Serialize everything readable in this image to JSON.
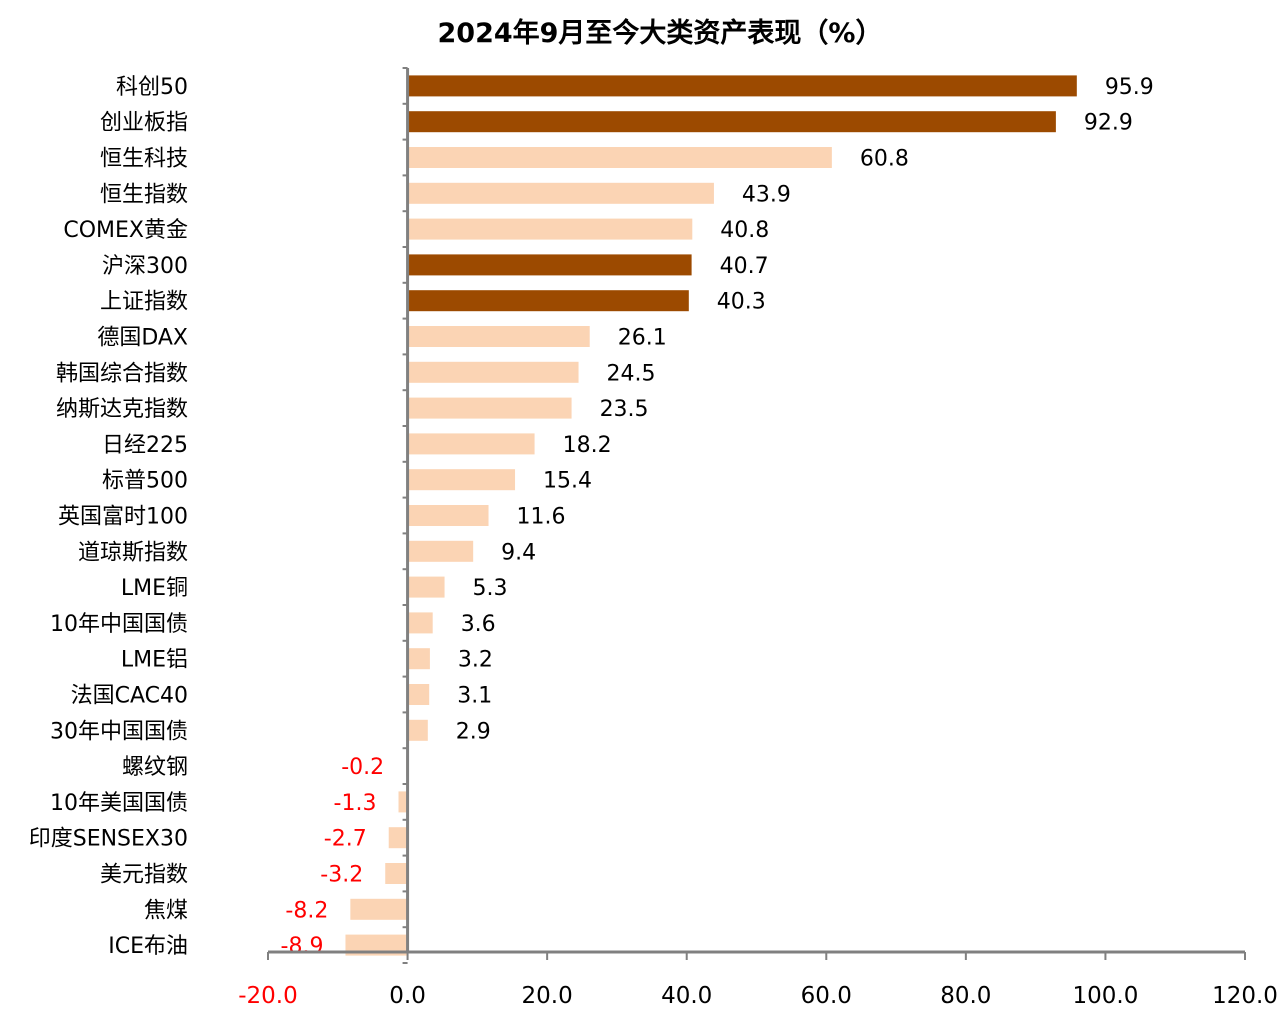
{
  "chart_data": {
    "type": "bar",
    "orientation": "horizontal",
    "title": "2024年9月至今大类资产表现（%）",
    "categories": [
      "科创50",
      "创业板指",
      "恒生科技",
      "恒生指数",
      "COMEX黄金",
      "沪深300",
      "上证指数",
      "德国DAX",
      "韩国综合指数",
      "纳斯达克指数",
      "日经225",
      "标普500",
      "英国富时100",
      "道琼斯指数",
      "LME铜",
      "10年中国国债",
      "LME铝",
      "法国CAC40",
      "30年中国国债",
      "螺纹钢",
      "10年美国国债",
      "印度SENSEX30",
      "美元指数",
      "焦煤",
      "ICE布油"
    ],
    "values": [
      95.9,
      92.9,
      60.8,
      43.9,
      40.8,
      40.7,
      40.3,
      26.1,
      24.5,
      23.5,
      18.2,
      15.4,
      11.6,
      9.4,
      5.3,
      3.6,
      3.2,
      3.1,
      2.9,
      -0.2,
      -1.3,
      -2.7,
      -3.2,
      -8.2,
      -8.9
    ],
    "value_labels": [
      "95.9",
      "92.9",
      "60.8",
      "43.9",
      "40.8",
      "40.7",
      "40.3",
      "26.1",
      "24.5",
      "23.5",
      "18.2",
      "15.4",
      "11.6",
      "9.4",
      "5.3",
      "3.6",
      "3.2",
      "3.1",
      "2.9",
      "-0.2",
      "-1.3",
      "-2.7",
      "-3.2",
      "-8.2",
      "-8.9"
    ],
    "highlighted": [
      "科创50",
      "创业板指",
      "沪深300",
      "上证指数"
    ],
    "xlim": [
      -20,
      120
    ],
    "xticks": [
      "-20.0",
      "0.0",
      "20.0",
      "40.0",
      "60.0",
      "80.0",
      "100.0",
      "120.0"
    ],
    "xtick_values": [
      -20,
      0,
      20,
      40,
      60,
      80,
      100,
      120
    ],
    "grid": false,
    "legend": "none",
    "colors": {
      "highlight_bar": "#9C4A00",
      "normal_bar": "#FBD4B4",
      "axis": "#808080",
      "negative_text": "#FF0000",
      "text": "#000000"
    }
  }
}
